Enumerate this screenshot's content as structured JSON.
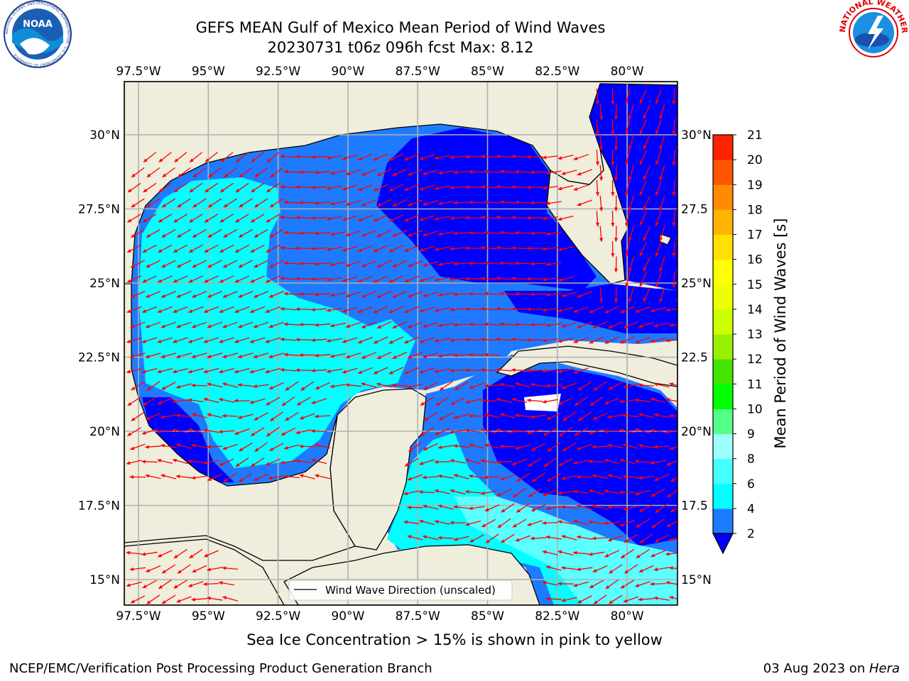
{
  "header": {
    "title_line1": "GEFS MEAN Gulf of Mexico Mean Period of Wind Waves",
    "title_line2": "20230731 t06z 096h fcst   Max: 8.12"
  },
  "logos": {
    "left": "NOAA",
    "left_ring_text": "NATIONAL OCEANIC AND ATMOSPHERIC ADMINISTRATION · U.S. DEPARTMENT OF COMMERCE",
    "right_ring_text": "NATIONAL WEATHER SERVICE"
  },
  "map": {
    "lon_labels": [
      "97.5°W",
      "95°W",
      "92.5°W",
      "90°W",
      "87.5°W",
      "85°W",
      "82.5°W",
      "80°W"
    ],
    "lat_labels": [
      "30°N",
      "27.5°N",
      "25°N",
      "22.5°N",
      "20°N",
      "17.5°N",
      "15°N"
    ],
    "lat_labels_right": [
      "30°N",
      "27.5",
      "25°N",
      "22.5",
      "20°N",
      "17.5",
      "15°N"
    ],
    "legend_label": "Wind Wave Direction (unscaled)",
    "colors": {
      "land": "#efeddc",
      "c2": "#0000ff",
      "c4": "#1e7bff",
      "c6": "#00ffff",
      "c8": "#5cffff",
      "arrow": "#ff0000",
      "grid": "#b0b0b0"
    }
  },
  "colorbar": {
    "label": "Mean Period of Wind Waves [s]",
    "ticks": [
      "2",
      "4",
      "6",
      "8",
      "9",
      "10",
      "11",
      "12",
      "13",
      "14",
      "15",
      "16",
      "17",
      "18",
      "19",
      "20",
      "21"
    ],
    "colors": [
      "#1e7bff",
      "#00ffff",
      "#46ffff",
      "#9cffff",
      "#55ff88",
      "#00ff00",
      "#44e300",
      "#99f000",
      "#ccff00",
      "#eeff00",
      "#ffff00",
      "#ffe000",
      "#ffb400",
      "#ff8c00",
      "#ff5500",
      "#ff2200"
    ]
  },
  "notes": {
    "ice": "Sea Ice Concentration > 15% is shown in pink to yellow"
  },
  "footer": {
    "left": "NCEP/EMC/Verification Post Processing Product Generation Branch",
    "right_date": "03 Aug 2023 on ",
    "right_machine": "Hera"
  }
}
